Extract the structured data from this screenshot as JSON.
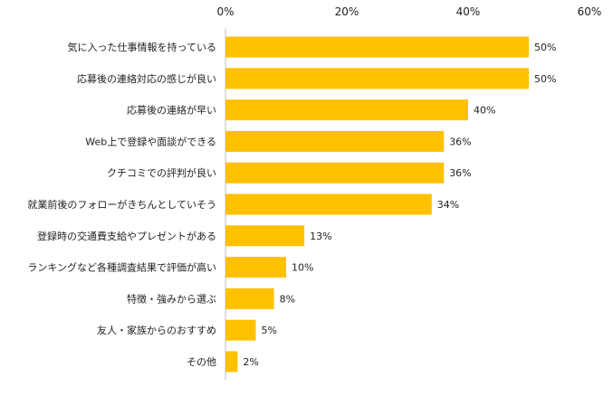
{
  "chart_data": {
    "type": "bar",
    "orientation": "horizontal",
    "categories": [
      "気に入った仕事情報を持っている",
      "応募後の連絡対応の感じが良い",
      "応募後の連絡が早い",
      "Web上で登録や面談ができる",
      "クチコミでの評判が良い",
      "就業前後のフォローがきちんとしていそう",
      "登録時の交通費支給やプレゼントがある",
      "ランキングなど各種調査結果で評価が高い",
      "特徴・強みから選ぶ",
      "友人・家族からのおすすめ",
      "その他"
    ],
    "values": [
      50,
      50,
      40,
      36,
      36,
      34,
      13,
      10,
      8,
      5,
      2
    ],
    "value_labels": [
      "50%",
      "50%",
      "40%",
      "36%",
      "36%",
      "34%",
      "13%",
      "10%",
      "8%",
      "5%",
      "2%"
    ],
    "xlim": [
      0,
      60
    ],
    "x_ticks": [
      0,
      20,
      40,
      60
    ],
    "x_tick_labels": [
      "0%",
      "20%",
      "40%",
      "60%"
    ],
    "axis_position": "top",
    "grid": false,
    "bar_color": "#FFC000"
  }
}
